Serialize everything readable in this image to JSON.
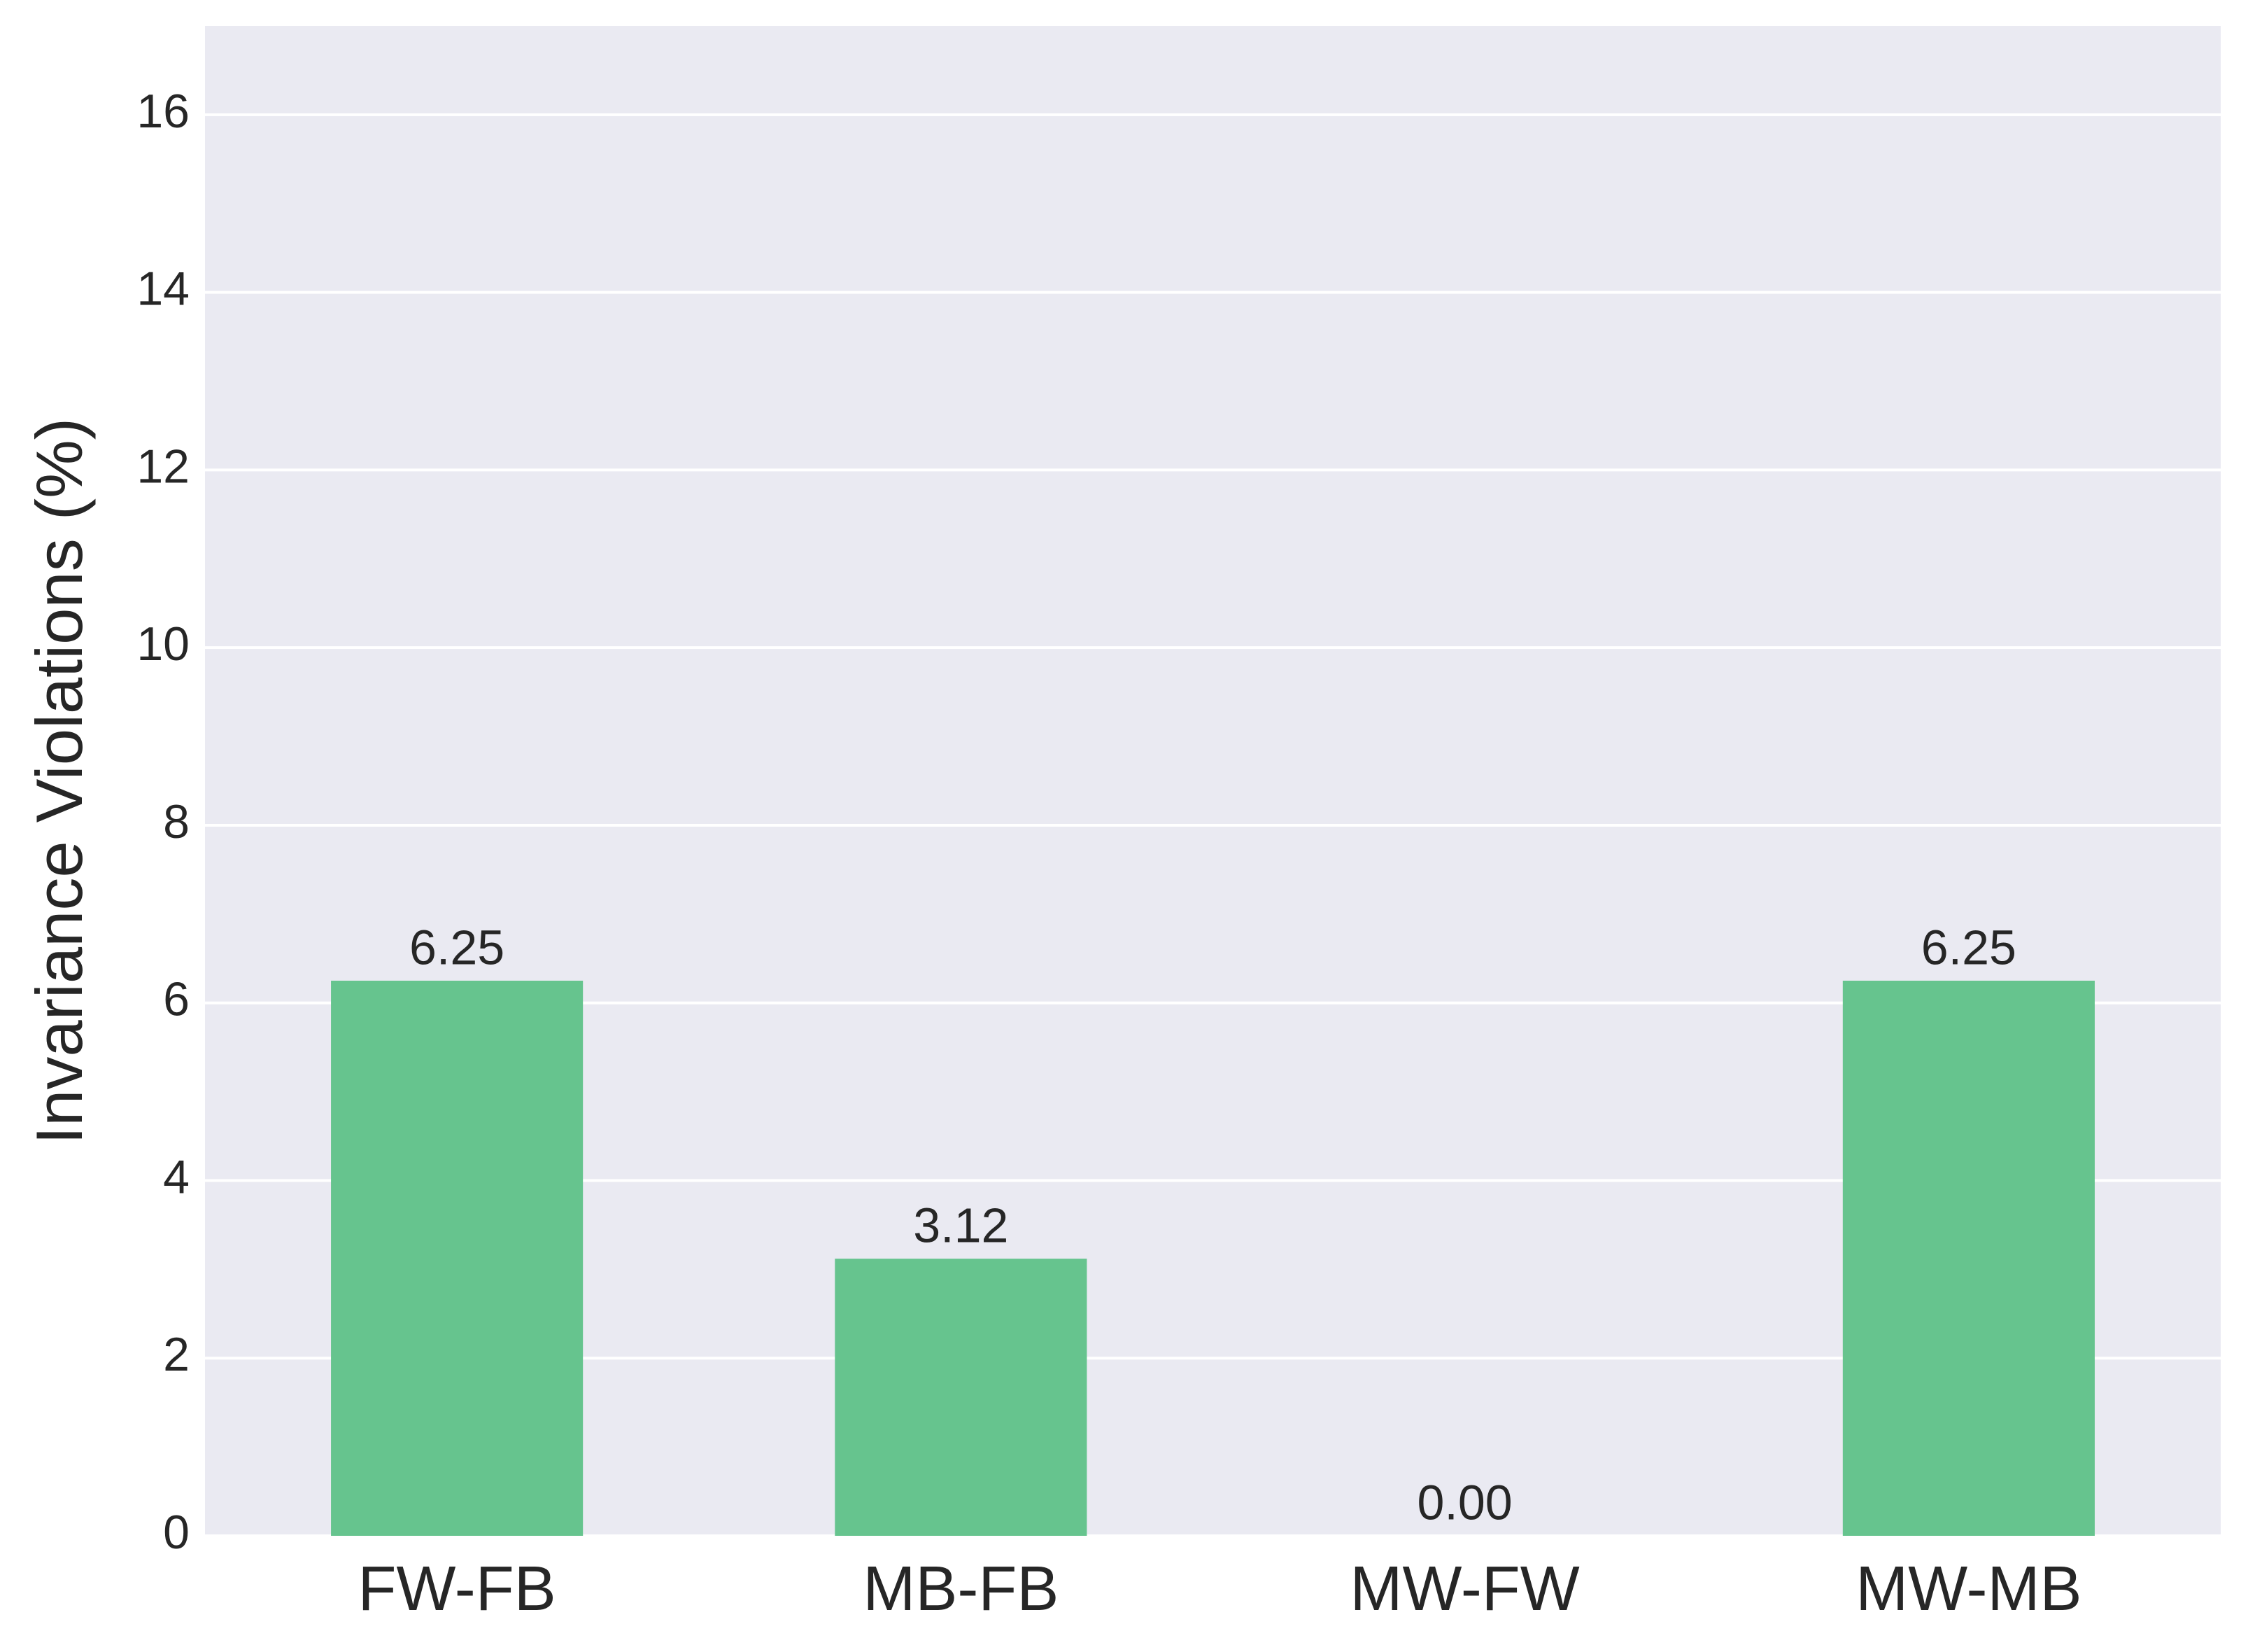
{
  "chart_data": {
    "type": "bar",
    "y_label": "Invariance Violations (%)",
    "categories": [
      "FW-FB",
      "MB-FB",
      "MW-FW",
      "MW-MB"
    ],
    "values": [
      6.25,
      3.12,
      0,
      6.25
    ],
    "value_labels": [
      "6.25",
      "3.12",
      "0.00",
      "6.25"
    ],
    "color": "#66c48e",
    "ylim": [
      0,
      17
    ],
    "yticks": [
      0,
      2,
      4,
      6,
      8,
      10,
      12,
      14,
      16
    ],
    "grid": true
  }
}
